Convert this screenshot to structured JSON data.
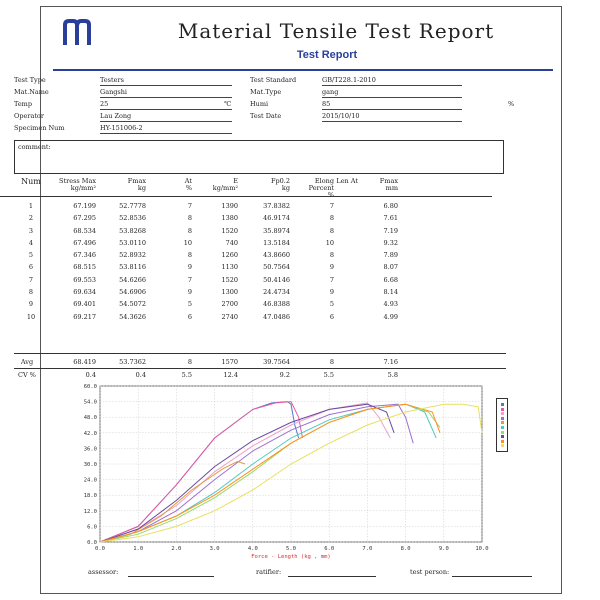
{
  "report": {
    "title": "Material Tensile Test Report",
    "subtitle": "Test Report"
  },
  "info": {
    "test_type": {
      "label": "Test Type",
      "value": "Testers"
    },
    "test_standard": {
      "label": "Test Standard",
      "value": "GB/T228.1-2010"
    },
    "mat_name": {
      "label": "Mat.Name",
      "value": "Gangshi"
    },
    "mat_type": {
      "label": "Mat.Type",
      "value": "gang"
    },
    "temp": {
      "label": "Temp",
      "value": "25",
      "unit": "℃"
    },
    "humi": {
      "label": "Humi",
      "value": "85",
      "unit": "%"
    },
    "operator": {
      "label": "Operator",
      "value": "Lau Zong"
    },
    "test_date": {
      "label": "Test Date",
      "value": "2015/10/10"
    },
    "specimen_num": {
      "label": "Specimen Num",
      "value": "HY-151006-2"
    },
    "comment_label": "comment:"
  },
  "table": {
    "headers": [
      {
        "l1": "Num",
        "l2": ""
      },
      {
        "l1": "Stress Max",
        "l2": "kg/mm²"
      },
      {
        "l1": "Fmax",
        "l2": "kg"
      },
      {
        "l1": "At",
        "l2": "%"
      },
      {
        "l1": "E",
        "l2": "kg/mm²"
      },
      {
        "l1": "Fp0.2",
        "l2": "kg"
      },
      {
        "l1": "Elong",
        "l2": "Percent",
        "l3": "%"
      },
      {
        "l1": "Len At",
        "l2": ""
      },
      {
        "l1": "Fmax",
        "l2": "mm"
      }
    ],
    "rows": [
      [
        "1",
        "67.199",
        "52.7778",
        "7",
        "1390",
        "37.8382",
        "7",
        "",
        "6.80"
      ],
      [
        "2",
        "67.295",
        "52.8536",
        "8",
        "1380",
        "46.9174",
        "8",
        "",
        "7.61"
      ],
      [
        "3",
        "68.534",
        "53.8268",
        "8",
        "1520",
        "35.8974",
        "8",
        "",
        "7.19"
      ],
      [
        "4",
        "67.496",
        "53.0110",
        "10",
        "740",
        "13.5184",
        "10",
        "",
        "9.32"
      ],
      [
        "5",
        "67.346",
        "52.8932",
        "8",
        "1260",
        "43.8660",
        "8",
        "",
        "7.89"
      ],
      [
        "6",
        "68.515",
        "53.8116",
        "9",
        "1130",
        "50.7564",
        "9",
        "",
        "8.07"
      ],
      [
        "7",
        "69.553",
        "54.6266",
        "7",
        "1520",
        "50.4146",
        "7",
        "",
        "6.68"
      ],
      [
        "8",
        "69.634",
        "54.6906",
        "9",
        "1300",
        "24.4734",
        "9",
        "",
        "8.14"
      ],
      [
        "9",
        "69.401",
        "54.5072",
        "5",
        "2700",
        "46.8388",
        "5",
        "",
        "4.93"
      ],
      [
        "10",
        "69.217",
        "54.3626",
        "6",
        "2740",
        "47.0486",
        "6",
        "",
        "4.99"
      ]
    ],
    "avg": [
      "Avg",
      "68.419",
      "53.7362",
      "8",
      "1570",
      "39.7564",
      "8",
      "",
      "7.16"
    ],
    "cv": [
      "CV %",
      "0.4",
      "0.4",
      "5.5",
      "12.4",
      "9.2",
      "5.5",
      "",
      "5.8"
    ]
  },
  "chart_data": {
    "type": "line",
    "xlabel": "Force - Length  (kg , mm)",
    "xlim": [
      0,
      10
    ],
    "ylim": [
      0,
      60
    ],
    "xticks": [
      "0.0",
      "1.0",
      "2.0",
      "3.0",
      "4.0",
      "5.0",
      "6.0",
      "7.0",
      "8.0",
      "9.0",
      "10.0"
    ],
    "yticks": [
      "0.0",
      "6.0",
      "12.0",
      "18.0",
      "24.0",
      "30.0",
      "36.0",
      "42.0",
      "48.0",
      "54.0",
      "60.0"
    ],
    "grid": true,
    "legend_position": "right",
    "colors": [
      "#4a7bd1",
      "#e85aa0",
      "#f2a0c8",
      "#a070d0",
      "#d8a040",
      "#50c8c0",
      "#9bd96a",
      "#6a4aa0",
      "#ff9020",
      "#e8e060"
    ],
    "series": [
      {
        "x": [
          0,
          1,
          2,
          3,
          4,
          4.5,
          4.9,
          5.0,
          5.1,
          5.2
        ],
        "y": [
          0,
          6,
          22,
          40,
          51,
          53.5,
          54,
          53,
          45,
          40
        ]
      },
      {
        "x": [
          0,
          1,
          2,
          3,
          4,
          4.6,
          5.0,
          5.2,
          5.3
        ],
        "y": [
          0,
          6,
          22,
          40,
          51,
          53.5,
          54,
          48,
          40
        ]
      },
      {
        "x": [
          0,
          1,
          2,
          3,
          4,
          5,
          6,
          7,
          7.3,
          7.6
        ],
        "y": [
          0,
          5,
          14,
          27,
          37,
          45,
          51,
          53.5,
          48,
          40
        ]
      },
      {
        "x": [
          0,
          1,
          2,
          3,
          4,
          5,
          6,
          7,
          7.8,
          8.0,
          8.2
        ],
        "y": [
          0,
          4,
          12,
          24,
          35,
          43,
          49,
          52,
          53,
          48,
          38
        ]
      },
      {
        "x": [
          0,
          0.8,
          1.6,
          2.4,
          3.2,
          3.6,
          3.8
        ],
        "y": [
          0,
          3,
          10,
          20,
          28,
          31,
          30
        ]
      },
      {
        "x": [
          0,
          1,
          2,
          3,
          4,
          5,
          6,
          7,
          8,
          8.5,
          8.8
        ],
        "y": [
          0,
          4,
          10,
          19,
          30,
          40,
          47,
          51,
          53,
          50,
          40
        ]
      },
      {
        "x": [
          0,
          1,
          2,
          3,
          4,
          5,
          6,
          7,
          8,
          8.6,
          8.9
        ],
        "y": [
          0,
          3,
          9,
          17,
          27,
          38,
          46,
          51,
          53,
          50,
          44
        ]
      },
      {
        "x": [
          0,
          1,
          2,
          3,
          4,
          5,
          6,
          7,
          7.5,
          7.7
        ],
        "y": [
          0,
          5,
          16,
          29,
          39,
          46,
          51,
          53,
          50,
          42
        ]
      },
      {
        "x": [
          0,
          1,
          2,
          3,
          4,
          5,
          6,
          7,
          8,
          8.7,
          8.9
        ],
        "y": [
          0,
          4,
          10,
          18,
          28,
          38,
          46,
          51,
          53,
          50,
          42
        ]
      },
      {
        "x": [
          0,
          1,
          2,
          3,
          4,
          5,
          6,
          7,
          8,
          9,
          9.5,
          9.9,
          10.0
        ],
        "y": [
          0,
          2,
          6,
          12,
          20,
          30,
          38,
          45,
          50,
          53,
          53,
          52,
          42
        ]
      }
    ]
  },
  "signatures": {
    "assessor": "assessor:",
    "ratifier": "ratifier:",
    "test_person": "test person:"
  }
}
